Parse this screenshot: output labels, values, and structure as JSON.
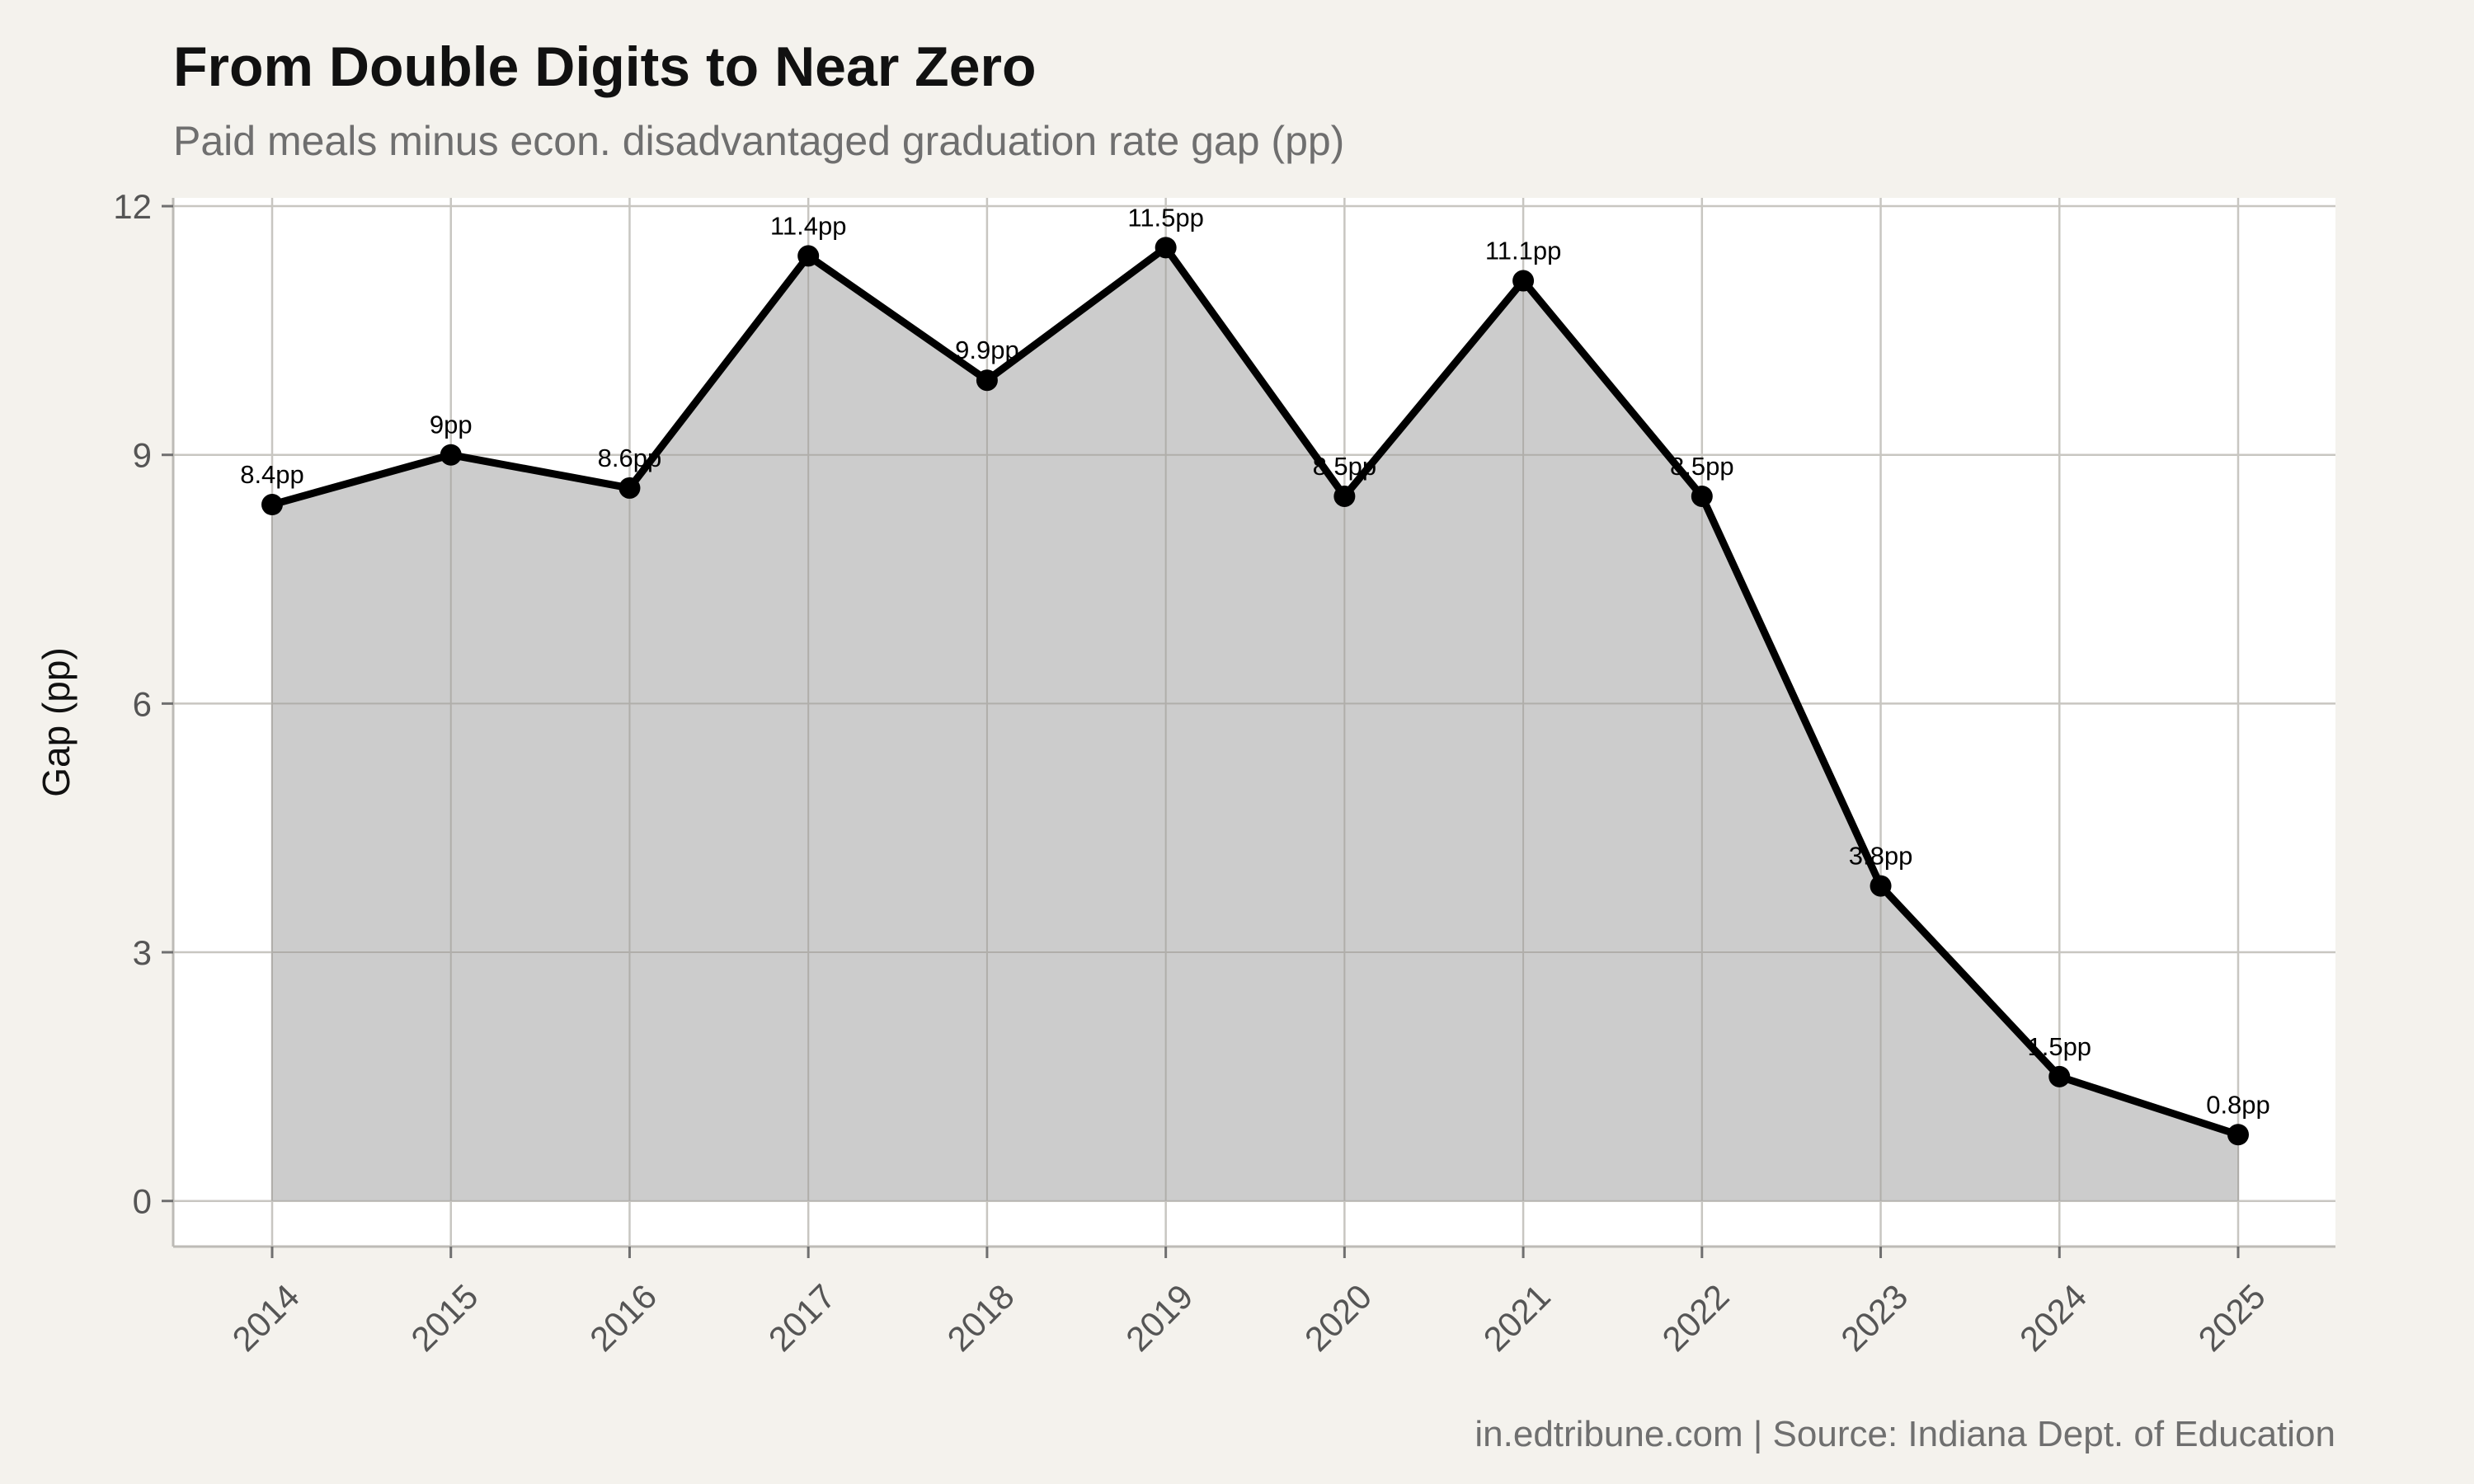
{
  "chart_data": {
    "type": "area",
    "title": "From Double Digits to Near Zero",
    "subtitle": "Paid meals minus econ. disadvantaged graduation rate gap (pp)",
    "caption": "in.edtribune.com | Source: Indiana Dept. of Education",
    "xlabel": "",
    "ylabel": "Gap (pp)",
    "categories": [
      "2014",
      "2015",
      "2016",
      "2017",
      "2018",
      "2019",
      "2020",
      "2021",
      "2022",
      "2023",
      "2024",
      "2025"
    ],
    "values": [
      8.4,
      9.0,
      8.6,
      11.4,
      9.9,
      11.5,
      8.5,
      11.1,
      8.5,
      3.8,
      1.5,
      0.8
    ],
    "data_labels": [
      "8.4pp",
      "9pp",
      "8.6pp",
      "11.4pp",
      "9.9pp",
      "11.5pp",
      "8.5pp",
      "11.1pp",
      "8.5pp",
      "3.8pp",
      "1.5pp",
      "0.8pp"
    ],
    "ylim": [
      -0.55,
      12.1
    ],
    "yticks": [
      0,
      3,
      6,
      9,
      12
    ],
    "ytick_labels": [
      "0",
      "3",
      "6",
      "9",
      "12"
    ],
    "grid": true,
    "legend": "none",
    "colors": {
      "page_background": "#f4f2ed",
      "panel_background": "#ffffff",
      "grid": "#c8c6c1",
      "area_fill": "#cccccc",
      "line": "#000000",
      "point": "#000000"
    }
  }
}
